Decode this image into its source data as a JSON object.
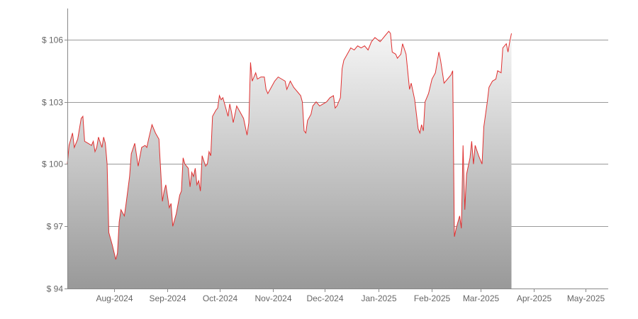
{
  "chart_data": {
    "type": "area",
    "title": "",
    "xlabel": "",
    "ylabel": "",
    "ylim": [
      94,
      107.5
    ],
    "yticks": [
      94,
      97,
      100,
      103,
      106
    ],
    "ytick_labels": [
      "$ 94",
      "$ 97",
      "$ 100",
      "$ 103",
      "$ 106"
    ],
    "grid": true,
    "legend": "none",
    "colors": {
      "line": "#e03030",
      "fill_top": "#f6f6f6",
      "fill_bottom": "#999999"
    },
    "xlim": [
      "2024-07-05",
      "2025-05-14"
    ],
    "xticks": [
      {
        "date": "2024-08-01",
        "label": "Aug-2024"
      },
      {
        "date": "2024-09-01",
        "label": "Sep-2024"
      },
      {
        "date": "2024-10-01",
        "label": "Oct-2024"
      },
      {
        "date": "2024-11-01",
        "label": "Nov-2024"
      },
      {
        "date": "2024-12-01",
        "label": "Dec-2024"
      },
      {
        "date": "2025-01-01",
        "label": "Jan-2025"
      },
      {
        "date": "2025-02-01",
        "label": "Feb-2025"
      },
      {
        "date": "2025-03-01",
        "label": "Mar-2025"
      },
      {
        "date": "2025-04-01",
        "label": "Apr-2025"
      },
      {
        "date": "2025-05-01",
        "label": "May-2025"
      }
    ],
    "series": [
      {
        "points": [
          [
            "2024-07-05",
            100.0
          ],
          [
            "2024-07-06",
            100.9
          ],
          [
            "2024-07-08",
            101.5
          ],
          [
            "2024-07-09",
            100.8
          ],
          [
            "2024-07-11",
            101.2
          ],
          [
            "2024-07-13",
            102.2
          ],
          [
            "2024-07-14",
            102.3
          ],
          [
            "2024-07-15",
            101.1
          ],
          [
            "2024-07-17",
            101.0
          ],
          [
            "2024-07-19",
            100.9
          ],
          [
            "2024-07-20",
            101.1
          ],
          [
            "2024-07-21",
            100.6
          ],
          [
            "2024-07-22",
            100.8
          ],
          [
            "2024-07-23",
            101.3
          ],
          [
            "2024-07-25",
            100.8
          ],
          [
            "2024-07-26",
            101.3
          ],
          [
            "2024-07-27",
            101.0
          ],
          [
            "2024-07-28",
            100.0
          ],
          [
            "2024-07-29",
            96.7
          ],
          [
            "2024-07-31",
            96.1
          ],
          [
            "2024-08-02",
            95.4
          ],
          [
            "2024-08-03",
            95.7
          ],
          [
            "2024-08-04",
            97.2
          ],
          [
            "2024-08-05",
            97.8
          ],
          [
            "2024-08-07",
            97.5
          ],
          [
            "2024-08-08",
            98.1
          ],
          [
            "2024-08-10",
            99.4
          ],
          [
            "2024-08-11",
            100.5
          ],
          [
            "2024-08-13",
            101.0
          ],
          [
            "2024-08-15",
            99.9
          ],
          [
            "2024-08-17",
            100.8
          ],
          [
            "2024-08-19",
            100.9
          ],
          [
            "2024-08-20",
            100.8
          ],
          [
            "2024-08-21",
            101.2
          ],
          [
            "2024-08-23",
            101.9
          ],
          [
            "2024-08-25",
            101.5
          ],
          [
            "2024-08-27",
            101.2
          ],
          [
            "2024-08-29",
            98.2
          ],
          [
            "2024-08-30",
            98.7
          ],
          [
            "2024-08-31",
            99.0
          ],
          [
            "2024-09-02",
            97.9
          ],
          [
            "2024-09-03",
            98.1
          ],
          [
            "2024-09-04",
            97.0
          ],
          [
            "2024-09-06",
            97.6
          ],
          [
            "2024-09-08",
            98.5
          ],
          [
            "2024-09-09",
            98.7
          ],
          [
            "2024-09-10",
            100.3
          ],
          [
            "2024-09-11",
            100.0
          ],
          [
            "2024-09-13",
            99.8
          ],
          [
            "2024-09-14",
            98.9
          ],
          [
            "2024-09-15",
            99.6
          ],
          [
            "2024-09-16",
            99.4
          ],
          [
            "2024-09-17",
            99.8
          ],
          [
            "2024-09-18",
            99.0
          ],
          [
            "2024-09-19",
            99.2
          ],
          [
            "2024-09-20",
            98.7
          ],
          [
            "2024-09-21",
            100.4
          ],
          [
            "2024-09-23",
            99.9
          ],
          [
            "2024-09-24",
            100.0
          ],
          [
            "2024-09-25",
            100.6
          ],
          [
            "2024-09-26",
            100.4
          ],
          [
            "2024-09-27",
            102.3
          ],
          [
            "2024-09-29",
            102.6
          ],
          [
            "2024-09-30",
            102.7
          ],
          [
            "2024-10-01",
            103.3
          ],
          [
            "2024-10-02",
            103.1
          ],
          [
            "2024-10-03",
            103.2
          ],
          [
            "2024-10-05",
            102.6
          ],
          [
            "2024-10-06",
            102.3
          ],
          [
            "2024-10-07",
            102.9
          ],
          [
            "2024-10-08",
            102.5
          ],
          [
            "2024-10-09",
            102.0
          ],
          [
            "2024-10-11",
            102.8
          ],
          [
            "2024-10-13",
            102.5
          ],
          [
            "2024-10-15",
            102.2
          ],
          [
            "2024-10-17",
            101.4
          ],
          [
            "2024-10-18",
            102.0
          ],
          [
            "2024-10-19",
            104.9
          ],
          [
            "2024-10-20",
            104.0
          ],
          [
            "2024-10-22",
            104.4
          ],
          [
            "2024-10-23",
            104.1
          ],
          [
            "2024-10-25",
            104.2
          ],
          [
            "2024-10-27",
            104.2
          ],
          [
            "2024-10-28",
            103.6
          ],
          [
            "2024-10-29",
            103.4
          ],
          [
            "2024-11-02",
            104.0
          ],
          [
            "2024-11-04",
            104.2
          ],
          [
            "2024-11-06",
            104.1
          ],
          [
            "2024-11-08",
            104.0
          ],
          [
            "2024-11-09",
            103.6
          ],
          [
            "2024-11-11",
            104.0
          ],
          [
            "2024-11-13",
            103.7
          ],
          [
            "2024-11-15",
            103.5
          ],
          [
            "2024-11-17",
            103.3
          ],
          [
            "2024-11-18",
            103.0
          ],
          [
            "2024-11-19",
            101.6
          ],
          [
            "2024-11-20",
            101.5
          ],
          [
            "2024-11-21",
            102.1
          ],
          [
            "2024-11-23",
            102.4
          ],
          [
            "2024-11-24",
            102.8
          ],
          [
            "2024-11-26",
            103.0
          ],
          [
            "2024-11-28",
            102.8
          ],
          [
            "2024-11-30",
            102.9
          ],
          [
            "2024-12-02",
            103.0
          ],
          [
            "2024-12-04",
            103.2
          ],
          [
            "2024-12-06",
            103.3
          ],
          [
            "2024-12-07",
            102.7
          ],
          [
            "2024-12-08",
            102.8
          ],
          [
            "2024-12-09",
            103.0
          ],
          [
            "2024-12-10",
            103.2
          ],
          [
            "2024-12-11",
            104.6
          ],
          [
            "2024-12-12",
            105.0
          ],
          [
            "2024-12-14",
            105.3
          ],
          [
            "2024-12-16",
            105.6
          ],
          [
            "2024-12-18",
            105.5
          ],
          [
            "2024-12-20",
            105.7
          ],
          [
            "2024-12-22",
            105.6
          ],
          [
            "2024-12-24",
            105.7
          ],
          [
            "2024-12-26",
            105.5
          ],
          [
            "2024-12-28",
            105.9
          ],
          [
            "2024-12-30",
            106.1
          ],
          [
            "2025-01-02",
            105.9
          ],
          [
            "2025-01-03",
            106.0
          ],
          [
            "2025-01-05",
            106.2
          ],
          [
            "2025-01-07",
            106.4
          ],
          [
            "2025-01-08",
            106.3
          ],
          [
            "2025-01-09",
            105.4
          ],
          [
            "2025-01-11",
            105.3
          ],
          [
            "2025-01-12",
            105.1
          ],
          [
            "2025-01-14",
            105.3
          ],
          [
            "2025-01-15",
            105.8
          ],
          [
            "2025-01-17",
            105.3
          ],
          [
            "2025-01-19",
            103.6
          ],
          [
            "2025-01-20",
            103.9
          ],
          [
            "2025-01-22",
            103.1
          ],
          [
            "2025-01-24",
            101.7
          ],
          [
            "2025-01-25",
            101.5
          ],
          [
            "2025-01-26",
            101.9
          ],
          [
            "2025-01-27",
            101.6
          ],
          [
            "2025-01-28",
            103.0
          ],
          [
            "2025-01-30",
            103.4
          ],
          [
            "2025-02-01",
            104.1
          ],
          [
            "2025-02-03",
            104.4
          ],
          [
            "2025-02-05",
            105.4
          ],
          [
            "2025-02-06",
            105.0
          ],
          [
            "2025-02-08",
            103.9
          ],
          [
            "2025-02-10",
            104.1
          ],
          [
            "2025-02-12",
            104.3
          ],
          [
            "2025-02-13",
            104.5
          ],
          [
            "2025-02-14",
            96.5
          ],
          [
            "2025-02-15",
            96.9
          ],
          [
            "2025-02-17",
            97.5
          ],
          [
            "2025-02-18",
            96.9
          ],
          [
            "2025-02-19",
            100.9
          ],
          [
            "2025-02-20",
            97.8
          ],
          [
            "2025-02-21",
            99.5
          ],
          [
            "2025-02-23",
            100.3
          ],
          [
            "2025-02-24",
            101.1
          ],
          [
            "2025-02-25",
            100.0
          ],
          [
            "2025-02-26",
            100.9
          ],
          [
            "2025-02-28",
            100.4
          ],
          [
            "2025-03-02",
            100.0
          ],
          [
            "2025-03-03",
            101.8
          ],
          [
            "2025-03-05",
            103.0
          ],
          [
            "2025-03-06",
            103.7
          ],
          [
            "2025-03-08",
            104.0
          ],
          [
            "2025-03-10",
            104.1
          ],
          [
            "2025-03-11",
            104.5
          ],
          [
            "2025-03-13",
            104.4
          ],
          [
            "2025-03-14",
            105.6
          ],
          [
            "2025-03-16",
            105.8
          ],
          [
            "2025-03-17",
            105.4
          ],
          [
            "2025-03-18",
            105.9
          ],
          [
            "2025-03-19",
            106.3
          ]
        ]
      }
    ]
  }
}
